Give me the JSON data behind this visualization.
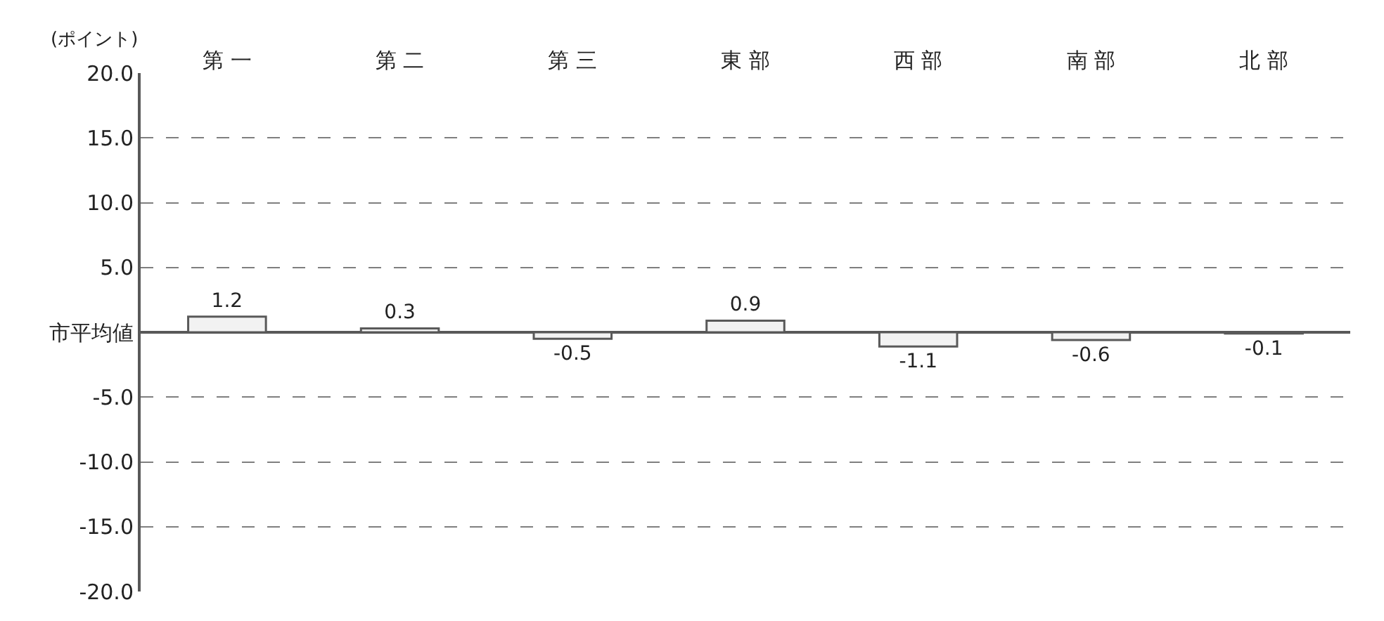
{
  "chart_data": {
    "type": "bar",
    "ylabel": "(ポイント)",
    "categories": [
      "第 一",
      "第 二",
      "第 三",
      "東 部",
      "西 部",
      "南 部",
      "北 部"
    ],
    "values": [
      1.2,
      0.3,
      -0.5,
      0.9,
      -1.1,
      -0.6,
      -0.1
    ],
    "color": "#f2f2f2",
    "ylim": [
      -20,
      20
    ],
    "yticks": [
      {
        "value": 20,
        "label": "20.0"
      },
      {
        "value": 15,
        "label": "15.0"
      },
      {
        "value": 10,
        "label": "10.0"
      },
      {
        "value": 5,
        "label": "5.0"
      },
      {
        "value": 0,
        "label": "市平均値"
      },
      {
        "value": -5,
        "label": "-5.0"
      },
      {
        "value": -10,
        "label": "-10.0"
      },
      {
        "value": -15,
        "label": "-15.0"
      },
      {
        "value": -20,
        "label": "-20.0"
      }
    ],
    "grid": "y",
    "data_labels": true
  }
}
